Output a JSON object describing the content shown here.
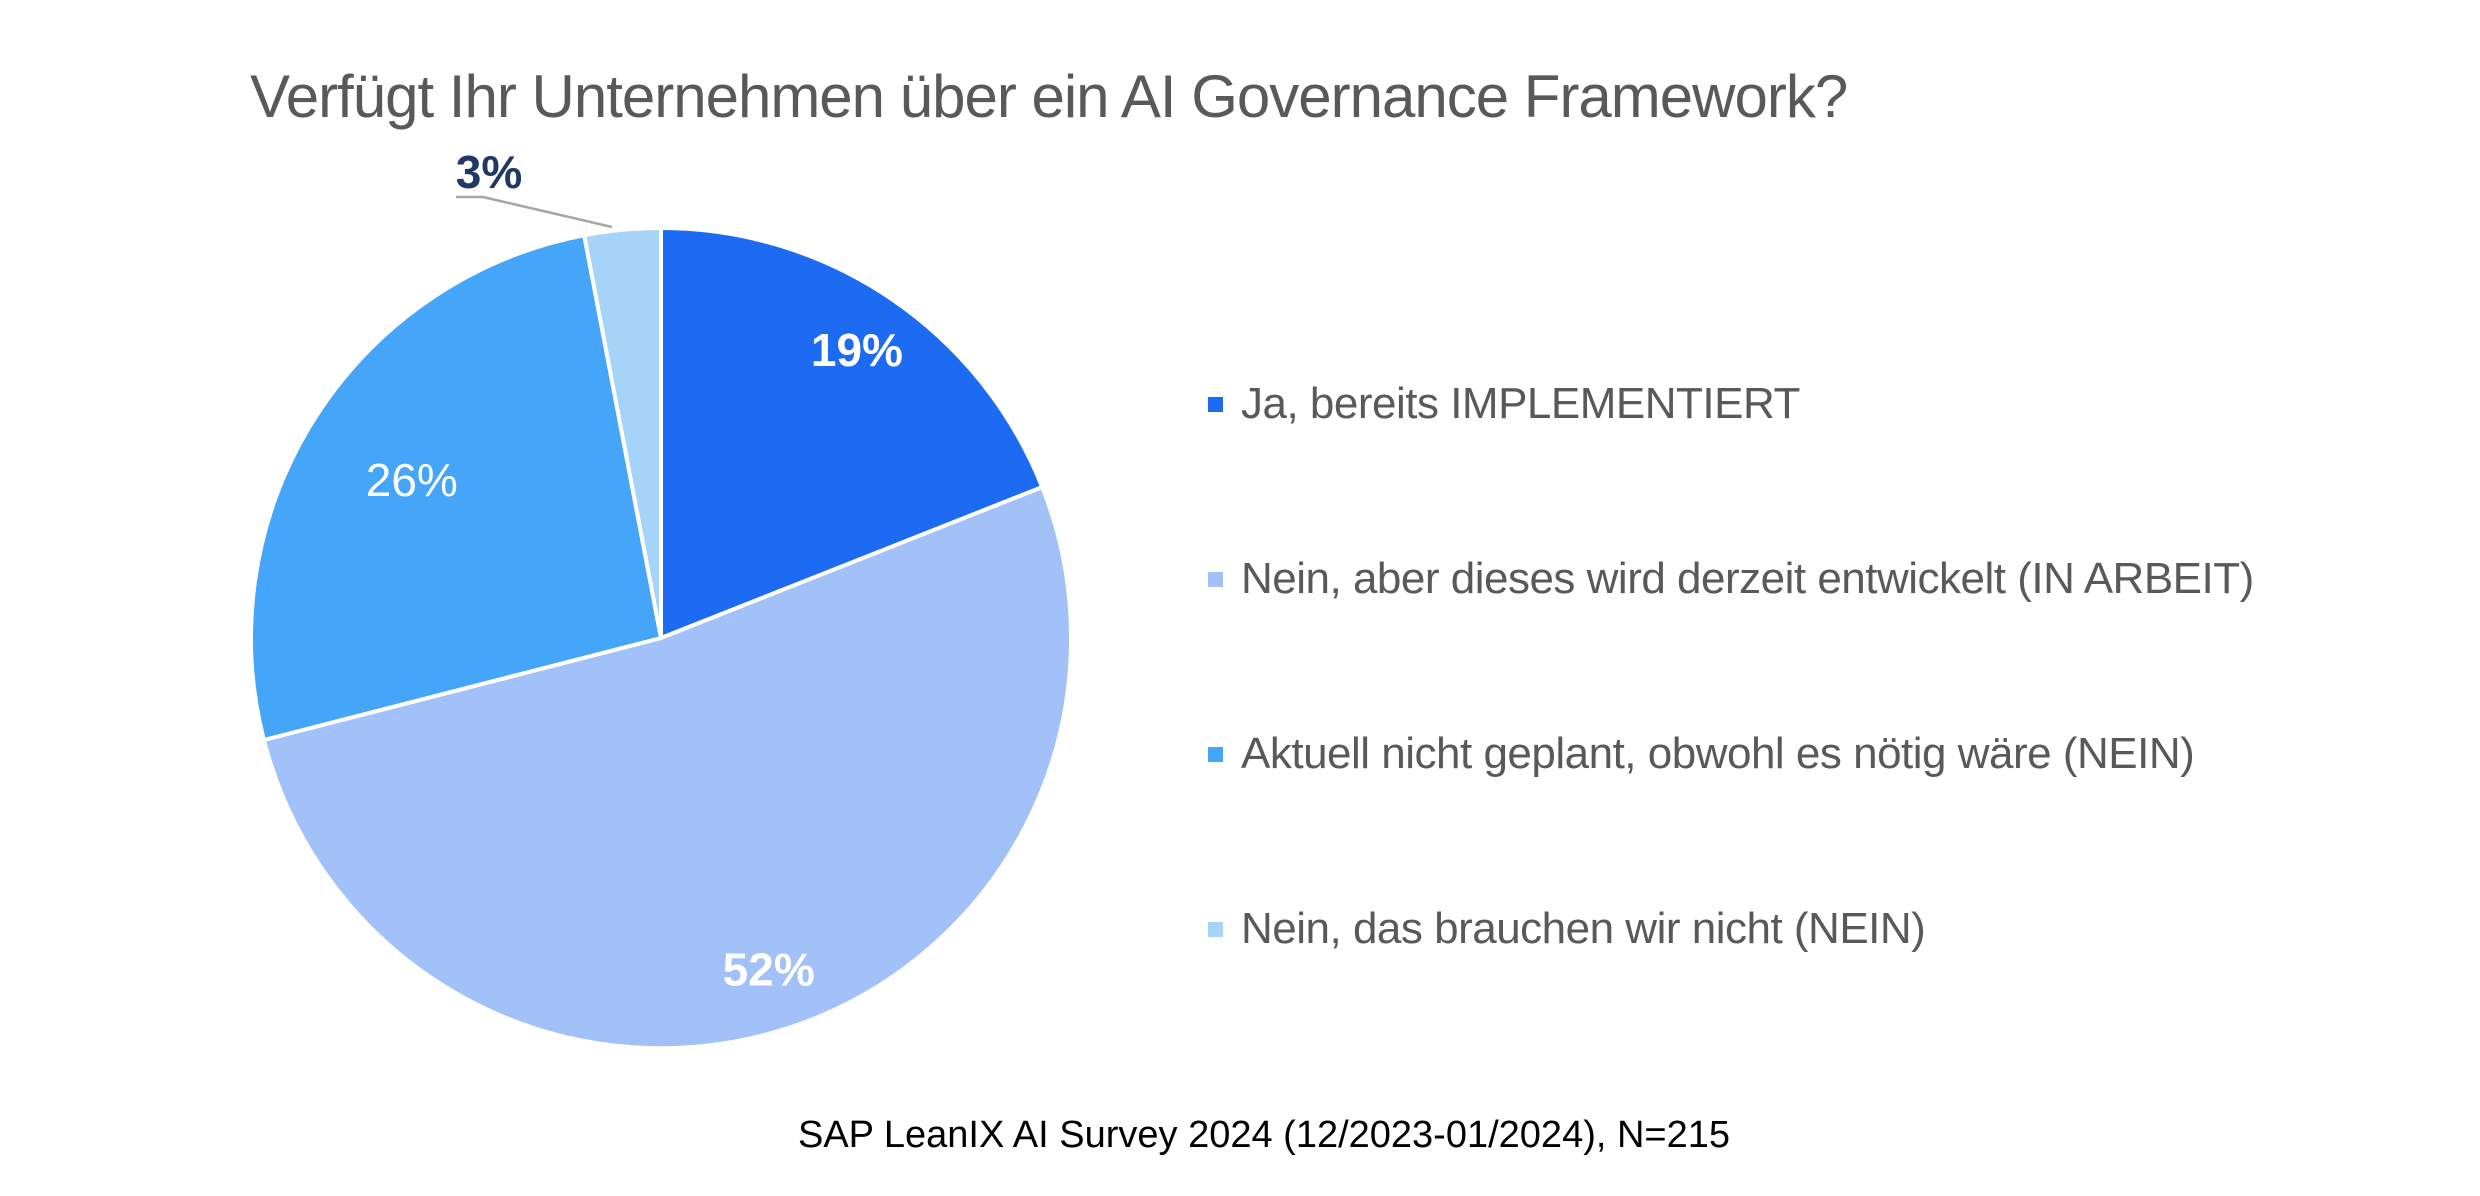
{
  "title": "Verfügt Ihr Unternehmen über ein AI Governance Framework?",
  "footer": {
    "source_note": "SAP LeanIX AI Survey 2024 (12/2023-01/2024), N=215"
  },
  "colors": {
    "background": "#ffffff",
    "title_text": "#595959",
    "legend_text": "#595959",
    "inside_label_text": "#ffffff",
    "outside_label_text": "#1F3864",
    "leader_line": "#A6A6A6",
    "slice_separator": "#ffffff"
  },
  "chart_data": {
    "type": "pie",
    "title": "Verfügt Ihr Unternehmen über ein AI Governance Framework?",
    "start_angle_deg": 0,
    "direction": "clockwise",
    "legend_position": "right",
    "source_note": "SAP LeanIX AI Survey 2024 (12/2023-01/2024), N=215",
    "series": [
      {
        "label": "Ja, bereits IMPLEMENTIERT",
        "value": 19,
        "display_value": "19%",
        "color": "#1C6BF2"
      },
      {
        "label": "Nein, aber dieses wird derzeit entwickelt (IN ARBEIT)",
        "value": 52,
        "display_value": "52%",
        "color": "#A2C1F8"
      },
      {
        "label": "Aktuell nicht geplant, obwohl es nötig wäre (NEIN)",
        "value": 26,
        "display_value": "26%",
        "color": "#45A5F8"
      },
      {
        "label": "Nein, das brauchen wir nicht (NEIN)",
        "value": 3,
        "display_value": "3%",
        "color": "#A6D4F8"
      }
    ]
  }
}
